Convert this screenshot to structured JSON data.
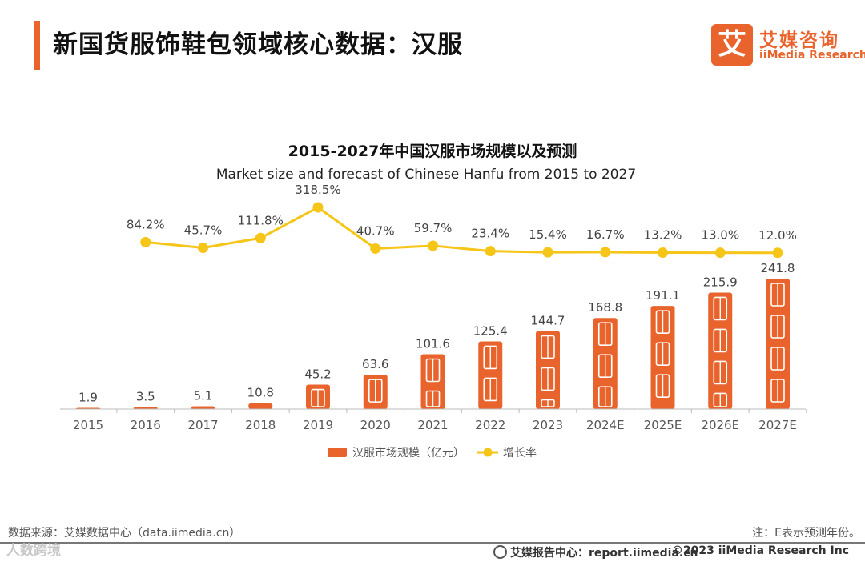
{
  "header": {
    "title": "新国货服饰鞋包领域核心数据：汉服",
    "logo_mark": "艾",
    "logo_cn": "艾媒咨询",
    "logo_en": "iiMedia Research"
  },
  "colors": {
    "accent": "#e8642c",
    "bar": "#e8642c",
    "line": "#f5c518"
  },
  "chart_data": {
    "type": "bar",
    "title": "2015-2027年中国汉服市场规模以及预测",
    "subtitle": "Market size and forecast of Chinese Hanfu from 2015 to 2027",
    "categories": [
      "2015",
      "2016",
      "2017",
      "2018",
      "2019",
      "2020",
      "2021",
      "2022",
      "2023",
      "2024E",
      "2025E",
      "2026E",
      "2027E"
    ],
    "series": [
      {
        "name": "汉服市场规模（亿元）",
        "kind": "bar",
        "values": [
          1.9,
          3.5,
          5.1,
          10.8,
          45.2,
          63.6,
          101.6,
          125.4,
          144.7,
          168.8,
          191.1,
          215.9,
          241.8
        ]
      },
      {
        "name": "增长率",
        "kind": "line",
        "values": [
          null,
          84.2,
          45.7,
          111.8,
          318.5,
          40.7,
          59.7,
          23.4,
          15.4,
          16.7,
          13.2,
          13.0,
          12.0
        ],
        "labels": [
          "",
          "84.2%",
          "45.7%",
          "111.8%",
          "318.5%",
          "40.7%",
          "59.7%",
          "23.4%",
          "15.4%",
          "16.7%",
          "13.2%",
          "13.0%",
          "12.0%"
        ]
      }
    ],
    "bar_labels": [
      "1.9",
      "3.5",
      "5.1",
      "10.8",
      "45.2",
      "63.6",
      "101.6",
      "125.4",
      "144.7",
      "168.8",
      "191.1",
      "215.9",
      "241.8"
    ],
    "legend": {
      "bar": "汉服市场规模（亿元）",
      "line": "增长率",
      "placement": "bottom-center"
    },
    "grid": false
  },
  "footer": {
    "source": "数据来源：艾媒数据中心（data.iimedia.cn）",
    "note": "注：E表示预测年份。",
    "report": "艾媒报告中心：report.iimedia.cn",
    "copyright": "©2023  iiMedia Research  Inc",
    "watermark": "人数跨境"
  }
}
